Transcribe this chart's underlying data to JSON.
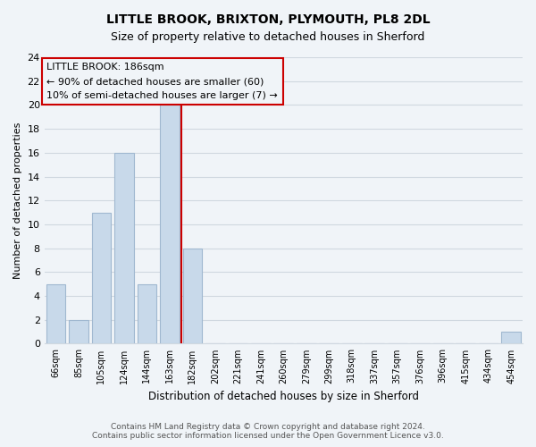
{
  "title": "LITTLE BROOK, BRIXTON, PLYMOUTH, PL8 2DL",
  "subtitle": "Size of property relative to detached houses in Sherford",
  "xlabel": "Distribution of detached houses by size in Sherford",
  "ylabel": "Number of detached properties",
  "footer_line1": "Contains HM Land Registry data © Crown copyright and database right 2024.",
  "footer_line2": "Contains public sector information licensed under the Open Government Licence v3.0.",
  "bar_labels": [
    "66sqm",
    "85sqm",
    "105sqm",
    "124sqm",
    "144sqm",
    "163sqm",
    "182sqm",
    "202sqm",
    "221sqm",
    "241sqm",
    "260sqm",
    "279sqm",
    "299sqm",
    "318sqm",
    "337sqm",
    "357sqm",
    "376sqm",
    "396sqm",
    "415sqm",
    "434sqm",
    "454sqm"
  ],
  "bar_heights": [
    5,
    2,
    11,
    16,
    5,
    20,
    8,
    0,
    0,
    0,
    0,
    0,
    0,
    0,
    0,
    0,
    0,
    0,
    0,
    0,
    1
  ],
  "bar_color": "#c8d9ea",
  "bar_edge_color": "#a0b8d0",
  "vline_color": "#cc0000",
  "ylim": [
    0,
    24
  ],
  "yticks": [
    0,
    2,
    4,
    6,
    8,
    10,
    12,
    14,
    16,
    18,
    20,
    22,
    24
  ],
  "annotation_title": "LITTLE BROOK: 186sqm",
  "annotation_line1": "← 90% of detached houses are smaller (60)",
  "annotation_line2": "10% of semi-detached houses are larger (7) →",
  "background_color": "#f0f4f8",
  "grid_color": "#d0d8e0",
  "title_fontsize": 10,
  "subtitle_fontsize": 9,
  "footer_fontsize": 6.5
}
